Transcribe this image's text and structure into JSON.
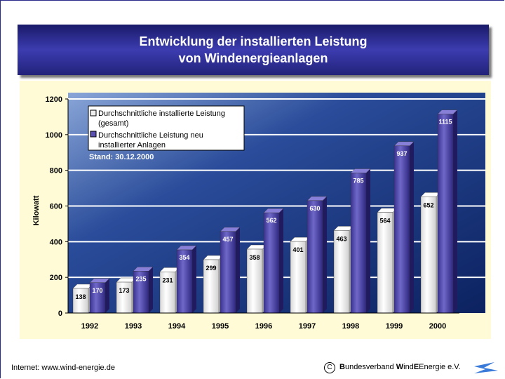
{
  "title_line1": "Entwicklung der installierten Leistung",
  "title_line2": "von Windenergieanlagen",
  "footer": {
    "left": "Internet: www.wind-energie.de",
    "copyright_symbol": "C",
    "org_bold1": "B",
    "org_part1": "undesverband ",
    "org_bold2": "W",
    "org_part2": "ind",
    "org_part3": "Energie e.V."
  },
  "chart_data": {
    "type": "bar",
    "title": "Entwicklung der installierten Leistung von Windenergieanlagen",
    "ylabel": "Kilowatt",
    "xlabel": "",
    "ylim": [
      0,
      1200
    ],
    "yticks": [
      0,
      200,
      400,
      600,
      800,
      1000,
      1200
    ],
    "categories": [
      "1992",
      "1993",
      "1994",
      "1995",
      "1996",
      "1997",
      "1998",
      "1999",
      "2000"
    ],
    "series": [
      {
        "name": "Durchschnittliche installierte Leistung (gesamt)",
        "legend_lines": [
          "Durchschnittliche installierte Leistung",
          "(gesamt)"
        ],
        "color": "#f4f4f4",
        "values": [
          138,
          173,
          231,
          299,
          358,
          401,
          463,
          564,
          652
        ]
      },
      {
        "name": "Durchschnittliche Leistung neu installierter Anlagen",
        "legend_lines": [
          "Durchschnittliche Leistung neu",
          "installierter Anlagen"
        ],
        "color": "#5a50b0",
        "values": [
          170,
          235,
          354,
          457,
          562,
          630,
          785,
          937,
          1115
        ]
      }
    ],
    "annotation": "Stand: 30.12.2000",
    "legend_position": "top-left",
    "grid": true
  }
}
